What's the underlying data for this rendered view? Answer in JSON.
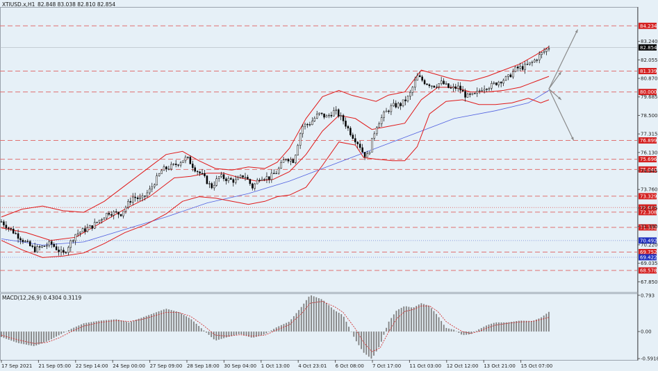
{
  "header": {
    "symbol": "XTIUSD.x,H1",
    "quote": "82.848 83.038 82.810 82.854",
    "macd_label": "MACD(12,26,9) 0.4304 0.3119"
  },
  "colors": {
    "background": "#e6f0f7",
    "level_line": "#e07070",
    "level_label_bg": "#d42020",
    "bollinger": "#e01818",
    "ma": "#4f5fe0",
    "candle": "#000000",
    "current_price_bg": "#000000",
    "projection_arrow": "#8a8a8a",
    "macd_hist": "#808080",
    "macd_signal": "#d02020"
  },
  "chart_data": [
    {
      "type": "candlestick",
      "title": "XTIUSD.x,H1",
      "y_ticks": [
        "83.240",
        "82.055",
        "80.870",
        "79.685",
        "78.500",
        "77.315",
        "76.130",
        "74.945",
        "73.760",
        "72.575",
        "71.390",
        "70.220",
        "69.035",
        "67.850"
      ],
      "ylim": [
        67.2,
        85.4
      ],
      "x_ticks": [
        "17 Sep 2021",
        "21 Sep 05:00",
        "22 Sep 14:00",
        "24 Sep 00:00",
        "27 Sep 09:00",
        "28 Sep 18:00",
        "30 Sep 04:00",
        "1 Oct 13:00",
        "4 Oct 23:01",
        "6 Oct 08:00",
        "7 Oct 17:00",
        "11 Oct 03:00",
        "12 Oct 12:00",
        "13 Oct 21:00",
        "15 Oct 07:00"
      ],
      "current_price": {
        "value": 82.854,
        "label": "82.854"
      },
      "levels": [
        {
          "value": 84.234,
          "label": "84.234",
          "style": "dashed"
        },
        {
          "value": 81.339,
          "label": "81.339",
          "style": "dashed"
        },
        {
          "value": 80.0,
          "label": "80.000",
          "style": "dashed"
        },
        {
          "value": 76.899,
          "label": "76.899",
          "style": "dashed"
        },
        {
          "value": 75.696,
          "label": "75.696",
          "style": "dashed"
        },
        {
          "value": 75.04,
          "label": "75.040",
          "style": "dashed"
        },
        {
          "value": 73.329,
          "label": "73.329",
          "style": "dashed"
        },
        {
          "value": 72.607,
          "label": "72.607",
          "style": "dotted"
        },
        {
          "value": 72.308,
          "label": "72.308",
          "style": "dashed"
        },
        {
          "value": 71.332,
          "label": "71.332",
          "style": "dashed"
        },
        {
          "value": 70.492,
          "label": "70.492",
          "style": "dotted",
          "color": "blue"
        },
        {
          "value": 69.752,
          "label": "69.752",
          "style": "dashed"
        },
        {
          "value": 69.422,
          "label": "69.422",
          "style": "dotted",
          "color": "blue"
        },
        {
          "value": 68.578,
          "label": "68.578",
          "style": "dashed"
        }
      ],
      "price_path": [
        [
          0,
          71.7
        ],
        [
          4,
          70.8
        ],
        [
          8,
          69.9
        ],
        [
          12,
          70.3
        ],
        [
          15,
          69.6
        ],
        [
          18,
          70.9
        ],
        [
          22,
          71.4
        ],
        [
          26,
          72.3
        ],
        [
          29,
          72.2
        ],
        [
          32,
          73.3
        ],
        [
          34,
          73.1
        ],
        [
          36,
          73.7
        ],
        [
          39,
          75.0
        ],
        [
          42,
          75.3
        ],
        [
          45,
          75.8
        ],
        [
          47,
          75.1
        ],
        [
          49,
          74.6
        ],
        [
          51,
          73.9
        ],
        [
          53,
          74.6
        ],
        [
          55,
          74.4
        ],
        [
          57,
          74.3
        ],
        [
          59,
          74.7
        ],
        [
          61,
          73.9
        ],
        [
          63,
          74.6
        ],
        [
          65,
          74.5
        ],
        [
          67,
          74.9
        ],
        [
          69,
          75.8
        ],
        [
          71,
          75.6
        ],
        [
          73,
          77.8
        ],
        [
          75,
          78.0
        ],
        [
          77,
          78.6
        ],
        [
          79,
          78.4
        ],
        [
          81,
          78.8
        ],
        [
          83,
          78.2
        ],
        [
          85,
          77.3
        ],
        [
          87,
          76.6
        ],
        [
          88,
          76.0
        ],
        [
          89,
          75.9
        ],
        [
          91,
          77.8
        ],
        [
          93,
          78.6
        ],
        [
          95,
          79.1
        ],
        [
          97,
          79.2
        ],
        [
          99,
          79.7
        ],
        [
          101,
          81.0
        ],
        [
          103,
          80.6
        ],
        [
          105,
          80.4
        ],
        [
          107,
          80.6
        ],
        [
          109,
          80.2
        ],
        [
          111,
          80.3
        ],
        [
          113,
          79.7
        ],
        [
          115,
          79.8
        ],
        [
          117,
          80.3
        ],
        [
          119,
          80.4
        ],
        [
          121,
          80.7
        ],
        [
          123,
          80.9
        ],
        [
          125,
          81.5
        ],
        [
          127,
          81.6
        ],
        [
          129,
          81.9
        ],
        [
          131,
          82.4
        ],
        [
          133,
          82.85
        ]
      ],
      "bollinger": {
        "upper": [
          [
            0,
            72.0
          ],
          [
            5,
            72.5
          ],
          [
            10,
            72.7
          ],
          [
            15,
            72.4
          ],
          [
            20,
            72.3
          ],
          [
            25,
            73.0
          ],
          [
            30,
            74.0
          ],
          [
            35,
            75.0
          ],
          [
            40,
            76.0
          ],
          [
            44,
            76.2
          ],
          [
            48,
            75.6
          ],
          [
            52,
            75.1
          ],
          [
            56,
            75.0
          ],
          [
            60,
            75.2
          ],
          [
            64,
            75.1
          ],
          [
            67,
            75.5
          ],
          [
            70,
            76.4
          ],
          [
            74,
            78.3
          ],
          [
            78,
            79.7
          ],
          [
            82,
            80.1
          ],
          [
            85,
            79.8
          ],
          [
            88,
            79.6
          ],
          [
            91,
            79.4
          ],
          [
            94,
            79.8
          ],
          [
            98,
            80.0
          ],
          [
            102,
            81.4
          ],
          [
            106,
            81.1
          ],
          [
            110,
            80.8
          ],
          [
            114,
            80.7
          ],
          [
            118,
            81.0
          ],
          [
            122,
            81.4
          ],
          [
            126,
            81.8
          ],
          [
            130,
            82.4
          ],
          [
            133,
            82.9
          ]
        ],
        "lower": [
          [
            0,
            70.5
          ],
          [
            5,
            69.9
          ],
          [
            10,
            69.4
          ],
          [
            15,
            69.5
          ],
          [
            20,
            69.7
          ],
          [
            25,
            70.3
          ],
          [
            30,
            71.0
          ],
          [
            35,
            71.5
          ],
          [
            40,
            72.2
          ],
          [
            44,
            73.0
          ],
          [
            48,
            73.3
          ],
          [
            52,
            73.2
          ],
          [
            56,
            73.0
          ],
          [
            60,
            72.8
          ],
          [
            64,
            73.0
          ],
          [
            67,
            73.3
          ],
          [
            70,
            73.4
          ],
          [
            74,
            73.9
          ],
          [
            78,
            75.3
          ],
          [
            82,
            76.8
          ],
          [
            86,
            76.6
          ],
          [
            88,
            75.8
          ],
          [
            91,
            75.7
          ],
          [
            95,
            75.6
          ],
          [
            98,
            75.6
          ],
          [
            101,
            76.5
          ],
          [
            104,
            78.6
          ],
          [
            108,
            79.4
          ],
          [
            112,
            79.5
          ],
          [
            116,
            79.2
          ],
          [
            120,
            79.2
          ],
          [
            124,
            79.3
          ],
          [
            128,
            79.6
          ],
          [
            131,
            79.3
          ],
          [
            133,
            79.5
          ]
        ],
        "middle": [
          [
            0,
            71.3
          ],
          [
            6,
            71.0
          ],
          [
            12,
            70.5
          ],
          [
            18,
            70.7
          ],
          [
            24,
            71.6
          ],
          [
            30,
            72.5
          ],
          [
            36,
            73.3
          ],
          [
            42,
            74.5
          ],
          [
            46,
            74.6
          ],
          [
            50,
            74.8
          ],
          [
            54,
            74.8
          ],
          [
            58,
            74.5
          ],
          [
            62,
            74.3
          ],
          [
            66,
            74.4
          ],
          [
            70,
            74.9
          ],
          [
            74,
            76.0
          ],
          [
            78,
            77.5
          ],
          [
            82,
            78.5
          ],
          [
            86,
            78.3
          ],
          [
            90,
            77.6
          ],
          [
            94,
            77.8
          ],
          [
            98,
            78.0
          ],
          [
            102,
            79.5
          ],
          [
            106,
            80.3
          ],
          [
            110,
            80.3
          ],
          [
            114,
            80.0
          ],
          [
            118,
            80.0
          ],
          [
            122,
            80.1
          ],
          [
            126,
            80.3
          ],
          [
            130,
            80.7
          ],
          [
            133,
            81.0
          ]
        ]
      },
      "moving_average": [
        [
          0,
          70.6
        ],
        [
          10,
          70.2
        ],
        [
          20,
          70.4
        ],
        [
          30,
          71.2
        ],
        [
          40,
          72.0
        ],
        [
          50,
          72.9
        ],
        [
          60,
          73.5
        ],
        [
          70,
          74.3
        ],
        [
          80,
          75.3
        ],
        [
          90,
          76.3
        ],
        [
          100,
          77.3
        ],
        [
          110,
          78.3
        ],
        [
          120,
          78.8
        ],
        [
          128,
          79.3
        ],
        [
          133,
          80.1
        ]
      ],
      "projection": {
        "from": [
          133,
          80.2
        ],
        "up_target": [
          140,
          84.0
        ],
        "down_target": [
          139,
          76.9
        ],
        "mid_up": [
          136,
          81.3
        ],
        "mid_down": [
          136,
          79.5
        ]
      }
    },
    {
      "type": "bar",
      "title": "MACD(12,26,9) 0.4304 0.3119",
      "y_ticks": [
        "0.793",
        "0.00",
        "-0.5918"
      ],
      "ylim": [
        -0.62,
        0.82
      ],
      "histogram_path": [
        [
          0,
          -0.12
        ],
        [
          4,
          -0.25
        ],
        [
          8,
          -0.32
        ],
        [
          11,
          -0.22
        ],
        [
          14,
          -0.08
        ],
        [
          17,
          0.06
        ],
        [
          20,
          0.18
        ],
        [
          24,
          0.24
        ],
        [
          28,
          0.27
        ],
        [
          31,
          0.2
        ],
        [
          34,
          0.3
        ],
        [
          37,
          0.4
        ],
        [
          40,
          0.5
        ],
        [
          43,
          0.43
        ],
        [
          46,
          0.28
        ],
        [
          49,
          0.04
        ],
        [
          52,
          -0.2
        ],
        [
          55,
          -0.12
        ],
        [
          58,
          -0.05
        ],
        [
          61,
          -0.14
        ],
        [
          64,
          -0.06
        ],
        [
          67,
          0.1
        ],
        [
          70,
          0.22
        ],
        [
          73,
          0.55
        ],
        [
          75,
          0.8
        ],
        [
          78,
          0.7
        ],
        [
          81,
          0.46
        ],
        [
          83,
          0.36
        ],
        [
          86,
          -0.18
        ],
        [
          88,
          -0.46
        ],
        [
          90,
          -0.6
        ],
        [
          92,
          -0.3
        ],
        [
          94,
          0.2
        ],
        [
          96,
          0.46
        ],
        [
          98,
          0.56
        ],
        [
          100,
          0.52
        ],
        [
          102,
          0.62
        ],
        [
          104,
          0.56
        ],
        [
          106,
          0.35
        ],
        [
          108,
          0.08
        ],
        [
          110,
          0.04
        ],
        [
          112,
          -0.08
        ],
        [
          114,
          -0.06
        ],
        [
          116,
          0.05
        ],
        [
          118,
          0.14
        ],
        [
          120,
          0.2
        ],
        [
          123,
          0.2
        ],
        [
          126,
          0.24
        ],
        [
          129,
          0.23
        ],
        [
          131,
          0.3
        ],
        [
          133,
          0.43
        ]
      ],
      "signal_path": [
        [
          0,
          -0.08
        ],
        [
          4,
          -0.18
        ],
        [
          8,
          -0.26
        ],
        [
          11,
          -0.24
        ],
        [
          14,
          -0.14
        ],
        [
          17,
          0.0
        ],
        [
          20,
          0.12
        ],
        [
          24,
          0.2
        ],
        [
          28,
          0.24
        ],
        [
          31,
          0.22
        ],
        [
          34,
          0.26
        ],
        [
          37,
          0.34
        ],
        [
          40,
          0.42
        ],
        [
          43,
          0.42
        ],
        [
          46,
          0.33
        ],
        [
          49,
          0.14
        ],
        [
          52,
          -0.08
        ],
        [
          55,
          -0.1
        ],
        [
          58,
          -0.07
        ],
        [
          61,
          -0.1
        ],
        [
          64,
          -0.08
        ],
        [
          67,
          0.04
        ],
        [
          70,
          0.15
        ],
        [
          73,
          0.4
        ],
        [
          75,
          0.62
        ],
        [
          78,
          0.66
        ],
        [
          81,
          0.54
        ],
        [
          83,
          0.42
        ],
        [
          86,
          0.06
        ],
        [
          88,
          -0.24
        ],
        [
          90,
          -0.44
        ],
        [
          92,
          -0.36
        ],
        [
          94,
          -0.02
        ],
        [
          96,
          0.28
        ],
        [
          98,
          0.44
        ],
        [
          100,
          0.48
        ],
        [
          102,
          0.56
        ],
        [
          104,
          0.56
        ],
        [
          106,
          0.44
        ],
        [
          108,
          0.22
        ],
        [
          110,
          0.1
        ],
        [
          112,
          0.0
        ],
        [
          114,
          -0.04
        ],
        [
          116,
          0.0
        ],
        [
          118,
          0.08
        ],
        [
          120,
          0.14
        ],
        [
          123,
          0.18
        ],
        [
          126,
          0.21
        ],
        [
          129,
          0.22
        ],
        [
          131,
          0.26
        ],
        [
          133,
          0.31
        ]
      ]
    }
  ]
}
